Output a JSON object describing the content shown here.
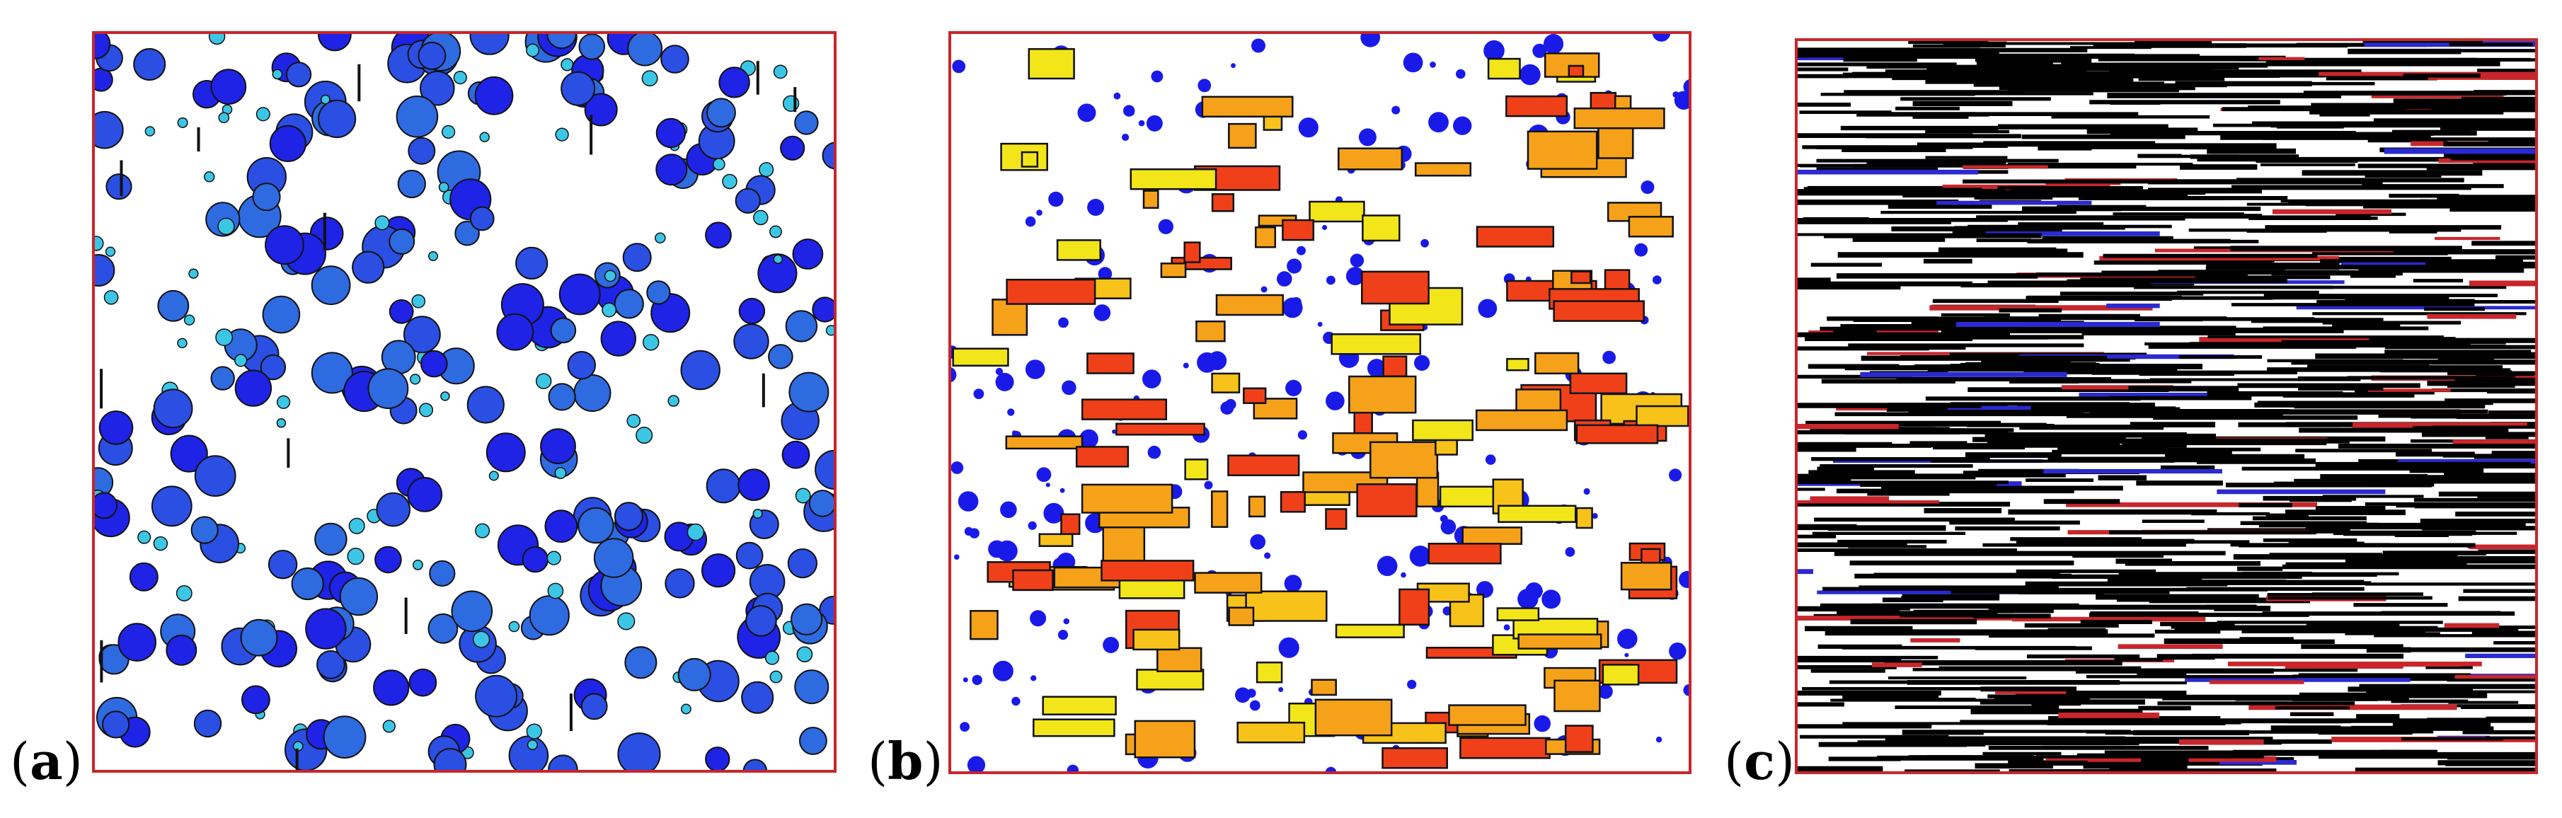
{
  "figure": {
    "panels": [
      {
        "id": "a",
        "label_open": "(",
        "label_letter": "a",
        "label_close": ")",
        "frame_color": "#c8262b",
        "description_kind": "circles-blue"
      },
      {
        "id": "b",
        "label_open": "(",
        "label_letter": "b",
        "label_close": ")",
        "frame_color": "#c8262b",
        "description_kind": "rectangles-and-dots"
      },
      {
        "id": "c",
        "label_open": "(",
        "label_letter": "c",
        "label_close": ")",
        "frame_color": "#c8262b",
        "description_kind": "horizontal-lines"
      }
    ],
    "colors": {
      "blue_dark": "#1f23e6",
      "blue_mid": "#2e6be0",
      "blue_light": "#3cc6e6",
      "dot_blue": "#1a1ae8",
      "rect_red": "#f0401a",
      "rect_orange": "#f5a21a",
      "rect_yellow": "#f2e61a",
      "line_black": "#000000",
      "line_red": "#c8262b",
      "line_blue": "#2a2ad0"
    }
  }
}
